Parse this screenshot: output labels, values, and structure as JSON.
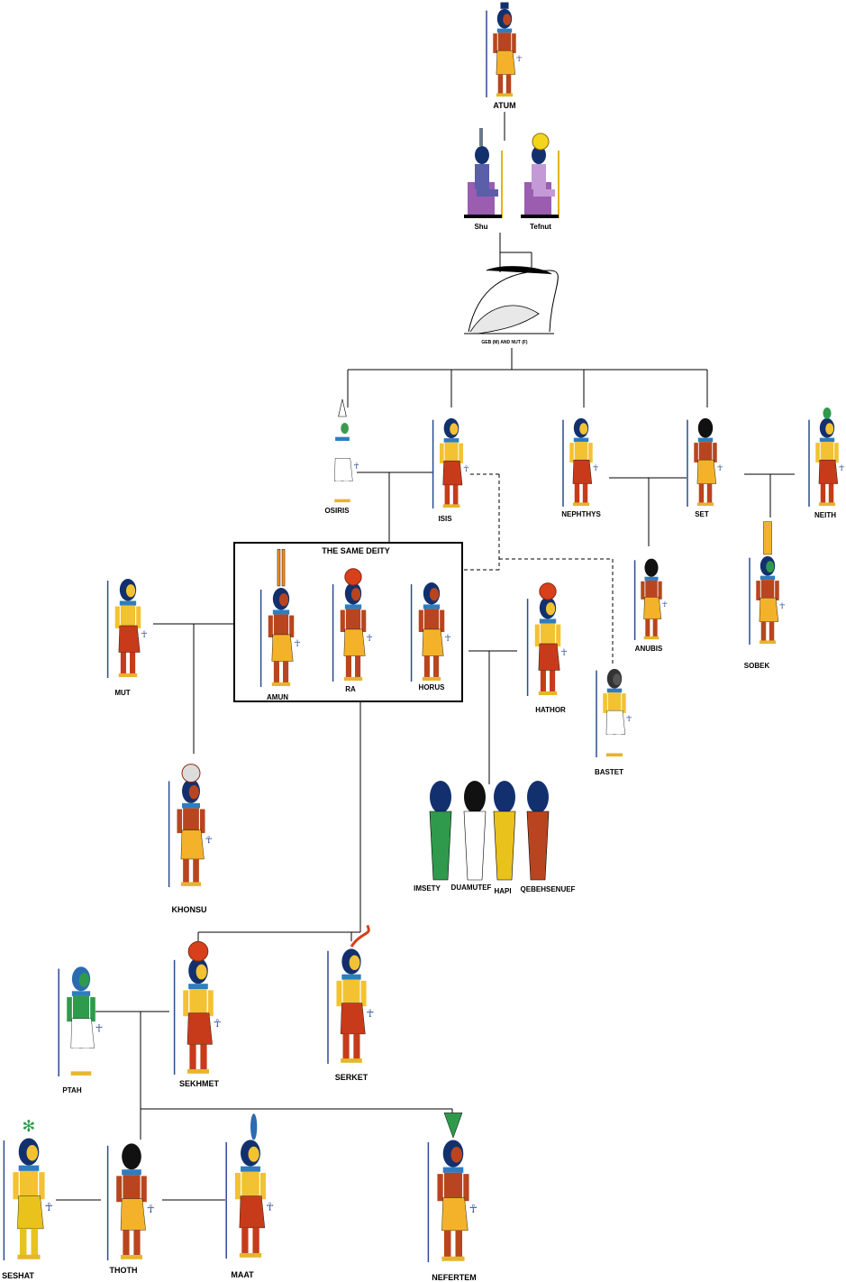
{
  "colors": {
    "skin": "#b8451f",
    "skin_f": "#f3c232",
    "kilt": "#f3b22a",
    "wig": "#13306e",
    "line": "#000000",
    "staff": "#2c4b8e",
    "dress": "#c73b1a",
    "green": "#2f9a4b",
    "gold": "#e9c31c",
    "white": "#ffffff",
    "jackal": "#1a1a1a",
    "purple": "#9a5db0"
  },
  "deities": {
    "atum": "ATUM",
    "shu": "Shu",
    "tefnut": "Tefnut",
    "geb_nut": "GEB (M) AND NUT (F)",
    "osiris": "OSIRIS",
    "isis": "ISIS",
    "nephthys": "NEPHTHYS",
    "set": "SET",
    "neith": "NEITH",
    "same_deity": "THE SAME DEITY",
    "amun": "AMUN",
    "ra": "RA",
    "horus": "HORUS",
    "mut": "MUT",
    "anubis": "ANUBIS",
    "sobek": "SOBEK",
    "hathor": "HATHOR",
    "bastet": "BASTET",
    "khonsu": "KHONSU",
    "imsety": "IMSETY",
    "duamutef": "DUAMUTEF",
    "hapi": "HAPI",
    "qebehsenuef": "QEBEHSENUEF",
    "ptah": "PTAH",
    "sekhmet": "SEKHMET",
    "serket": "SERKET",
    "seshat": "SESHAT",
    "thoth": "THOTH",
    "maat": "MAAT",
    "nefertem": "NEFERTEM"
  }
}
